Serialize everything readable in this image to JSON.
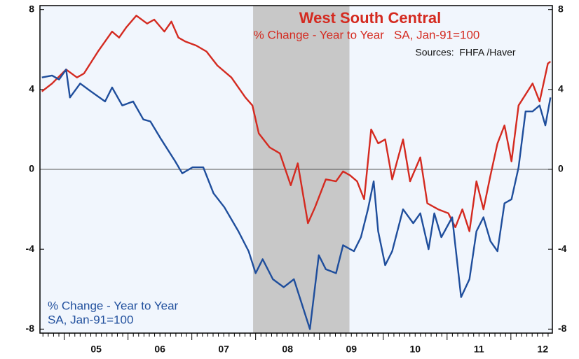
{
  "chart_data": {
    "type": "line",
    "title": "West South Central",
    "subtitle": "% Change - Year to Year   SA, Jan-91=100",
    "source": "Sources:  FHFA /Haver",
    "annotation": [
      "% Change - Year to Year",
      "SA, Jan-91=100"
    ],
    "xlim": [
      2004.62,
      2012.65
    ],
    "xticks": [
      {
        "value": 2005.5,
        "label": "05"
      },
      {
        "value": 2006.5,
        "label": "06"
      },
      {
        "value": 2007.5,
        "label": "07"
      },
      {
        "value": 2008.5,
        "label": "08"
      },
      {
        "value": 2009.5,
        "label": "09"
      },
      {
        "value": 2010.5,
        "label": "10"
      },
      {
        "value": 2011.5,
        "label": "11"
      },
      {
        "value": 2012.5,
        "label": "12"
      }
    ],
    "ylim": [
      -8.2,
      8.2
    ],
    "yticks": [
      8,
      4,
      0,
      -4,
      -8
    ],
    "y2lim": [
      -8.2,
      8.2
    ],
    "y2ticks": [
      8,
      4,
      0,
      -4,
      -8
    ],
    "shaded_region": [
      2007.96,
      2009.47
    ],
    "series": [
      {
        "color": "#d42a20",
        "x": [
          2004.65,
          2004.81,
          2005.03,
          2005.2,
          2005.31,
          2005.53,
          2005.75,
          2005.86,
          2005.97,
          2006.13,
          2006.3,
          2006.41,
          2006.57,
          2006.68,
          2006.79,
          2006.9,
          2007.07,
          2007.23,
          2007.4,
          2007.62,
          2007.84,
          2007.95,
          2008.05,
          2008.22,
          2008.38,
          2008.55,
          2008.66,
          2008.82,
          2008.93,
          2009.1,
          2009.26,
          2009.37,
          2009.48,
          2009.59,
          2009.7,
          2009.81,
          2009.92,
          2010.03,
          2010.14,
          2010.31,
          2010.42,
          2010.58,
          2010.69,
          2010.86,
          2011.02,
          2011.13,
          2011.24,
          2011.35,
          2011.46,
          2011.57,
          2011.68,
          2011.79,
          2011.9,
          2012.01,
          2012.12,
          2012.34,
          2012.45,
          2012.58,
          2012.62
        ],
        "values": [
          3.9,
          4.3,
          5.0,
          4.6,
          4.8,
          5.9,
          6.9,
          6.6,
          7.1,
          7.7,
          7.3,
          7.5,
          6.9,
          7.4,
          6.6,
          6.4,
          6.2,
          5.9,
          5.2,
          4.6,
          3.6,
          3.2,
          1.8,
          1.1,
          0.8,
          -0.8,
          0.3,
          -2.7,
          -1.9,
          -0.5,
          -0.6,
          -0.1,
          -0.3,
          -0.6,
          -1.5,
          2.0,
          1.3,
          1.5,
          -0.5,
          1.5,
          -0.6,
          0.6,
          -1.7,
          -2.0,
          -2.2,
          -2.9,
          -2.0,
          -3.1,
          -0.6,
          -2.0,
          -0.3,
          1.3,
          2.2,
          0.4,
          3.2,
          4.3,
          3.4,
          5.3,
          5.4
        ]
      },
      {
        "color": "#1f4e9c",
        "axis": "y2",
        "x": [
          2004.65,
          2004.81,
          2004.92,
          2005.03,
          2005.09,
          2005.25,
          2005.42,
          2005.64,
          2005.75,
          2005.91,
          2006.08,
          2006.24,
          2006.35,
          2006.52,
          2006.74,
          2006.85,
          2007.01,
          2007.18,
          2007.34,
          2007.51,
          2007.73,
          2007.89,
          2008.0,
          2008.11,
          2008.27,
          2008.44,
          2008.6,
          2008.71,
          2008.85,
          2008.99,
          2009.1,
          2009.26,
          2009.37,
          2009.54,
          2009.65,
          2009.76,
          2009.85,
          2009.92,
          2010.03,
          2010.14,
          2010.31,
          2010.47,
          2010.58,
          2010.71,
          2010.8,
          2010.91,
          2011.08,
          2011.22,
          2011.35,
          2011.46,
          2011.57,
          2011.68,
          2011.79,
          2011.9,
          2012.01,
          2012.12,
          2012.23,
          2012.34,
          2012.45,
          2012.54,
          2012.62
        ],
        "values": [
          4.6,
          4.7,
          4.5,
          5.0,
          3.6,
          4.3,
          3.9,
          3.4,
          4.1,
          3.2,
          3.4,
          2.5,
          2.4,
          1.5,
          0.4,
          -0.2,
          0.1,
          0.1,
          -1.2,
          -1.9,
          -3.1,
          -4.1,
          -5.2,
          -4.5,
          -5.5,
          -5.9,
          -5.5,
          -6.6,
          -8.0,
          -4.3,
          -5.0,
          -5.2,
          -3.8,
          -4.1,
          -3.4,
          -2.0,
          -0.6,
          -3.1,
          -4.8,
          -4.1,
          -2.0,
          -2.7,
          -2.2,
          -4.0,
          -2.2,
          -3.4,
          -2.4,
          -6.4,
          -5.5,
          -3.1,
          -2.4,
          -3.6,
          -4.1,
          -1.7,
          -1.5,
          0.1,
          2.9,
          2.9,
          3.2,
          2.2,
          3.6
        ]
      }
    ]
  }
}
